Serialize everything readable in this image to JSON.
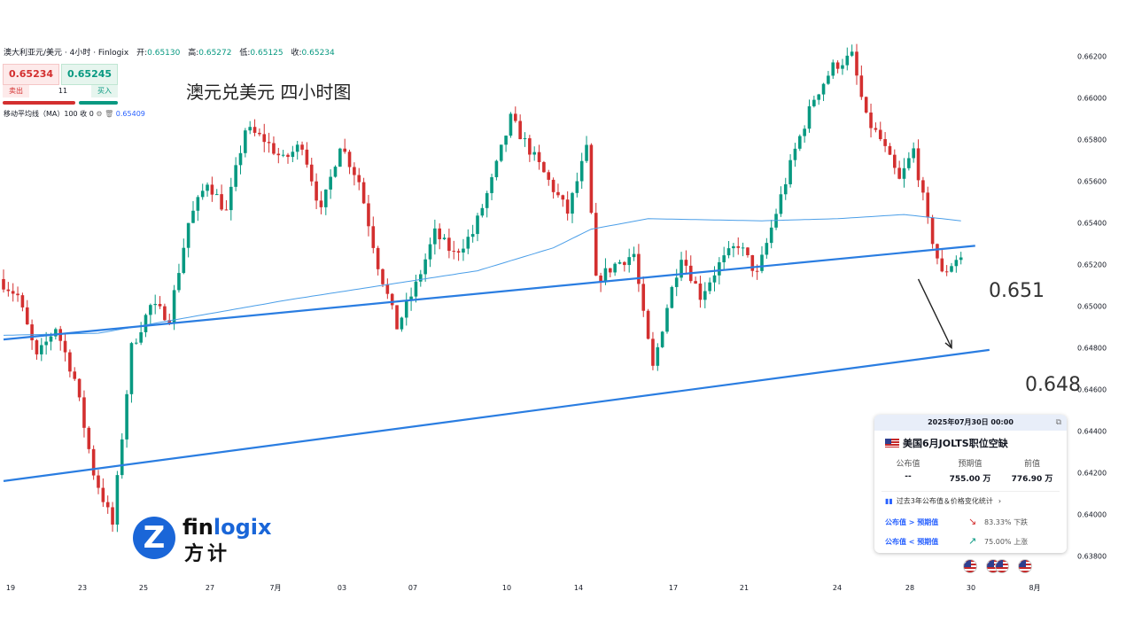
{
  "header": {
    "symbol": "澳大利亚元/美元 · 4小时 · Finlogix",
    "open_label": "开:",
    "open": "0.65130",
    "high_label": "高:",
    "high": "0.65272",
    "low_label": "低:",
    "low": "0.65125",
    "close_label": "收:",
    "close": "0.65234"
  },
  "trade": {
    "sell_price": "0.65234",
    "buy_price": "0.65245",
    "sell_label": "卖出",
    "buy_label": "买入",
    "quantity": "11"
  },
  "indicator": {
    "label": "移动平均线（MA）100 收 0",
    "value": "0.65409"
  },
  "title": "澳元兑美元 四小时图",
  "annotations": {
    "upper": "0.651",
    "lower": "0.648"
  },
  "event": {
    "datetime": "2025年07月30日 00:00",
    "name": "美国6月JOLTS职位空缺",
    "actual_label": "公布值",
    "actual": "--",
    "forecast_label": "预期值",
    "forecast": "755.00 万",
    "previous_label": "前值",
    "previous": "776.90 万",
    "stats_label": "过去3年公布值＆价格变化统计",
    "above_label": "公布值 > 预期值",
    "above_pct": "83.33%",
    "above_text": "下跌",
    "below_label": "公布值 < 预期值",
    "below_pct": "75.00%",
    "below_text": "上涨"
  },
  "logo": {
    "brand_en_a": "fin",
    "brand_en_b": "logix",
    "brand_cn": "方计",
    "mark": "Z"
  },
  "colors": {
    "up": "#089981",
    "down": "#d32f2f",
    "trendline": "#2a7de1",
    "ma": "#4a9ee8"
  },
  "chart_data": {
    "type": "candlestick",
    "timeframe": "4H",
    "y_ticks": [
      "0.66200",
      "0.66000",
      "0.65800",
      "0.65600",
      "0.65400",
      "0.65200",
      "0.65000",
      "0.64800",
      "0.64600",
      "0.64400",
      "0.64200",
      "0.64000",
      "0.63800"
    ],
    "x_ticks": [
      "19",
      "23",
      "25",
      "27",
      "7月",
      "03",
      "07",
      "10",
      "14",
      "17",
      "21",
      "24",
      "28",
      "30",
      "8月"
    ],
    "ylim": [
      0.6372,
      0.663
    ],
    "keypoints": [
      [
        0,
        0.6513
      ],
      [
        4,
        0.6505
      ],
      [
        8,
        0.6475
      ],
      [
        12,
        0.649
      ],
      [
        16,
        0.6465
      ],
      [
        20,
        0.642
      ],
      [
        24,
        0.6395
      ],
      [
        28,
        0.648
      ],
      [
        32,
        0.65
      ],
      [
        36,
        0.6495
      ],
      [
        40,
        0.654
      ],
      [
        44,
        0.656
      ],
      [
        48,
        0.6545
      ],
      [
        52,
        0.6585
      ],
      [
        56,
        0.658
      ],
      [
        60,
        0.657
      ],
      [
        64,
        0.6578
      ],
      [
        68,
        0.6545
      ],
      [
        72,
        0.6578
      ],
      [
        76,
        0.656
      ],
      [
        80,
        0.652
      ],
      [
        84,
        0.649
      ],
      [
        88,
        0.651
      ],
      [
        92,
        0.6535
      ],
      [
        96,
        0.6525
      ],
      [
        100,
        0.6535
      ],
      [
        104,
        0.656
      ],
      [
        108,
        0.659
      ],
      [
        112,
        0.6575
      ],
      [
        116,
        0.656
      ],
      [
        120,
        0.6545
      ],
      [
        124,
        0.6575
      ],
      [
        126,
        0.6512
      ],
      [
        130,
        0.652
      ],
      [
        134,
        0.6525
      ],
      [
        136,
        0.6495
      ],
      [
        138,
        0.647
      ],
      [
        141,
        0.65
      ],
      [
        144,
        0.6525
      ],
      [
        148,
        0.6505
      ],
      [
        152,
        0.652
      ],
      [
        156,
        0.653
      ],
      [
        160,
        0.6515
      ],
      [
        164,
        0.6545
      ],
      [
        168,
        0.6575
      ],
      [
        172,
        0.66
      ],
      [
        176,
        0.6615
      ],
      [
        180,
        0.662
      ],
      [
        183,
        0.659
      ],
      [
        186,
        0.658
      ],
      [
        190,
        0.656
      ],
      [
        193,
        0.6575
      ],
      [
        196,
        0.654
      ],
      [
        199,
        0.6515
      ],
      [
        202,
        0.6523
      ]
    ],
    "ma100_keypoints": [
      [
        0,
        0.6486
      ],
      [
        20,
        0.6487
      ],
      [
        40,
        0.6495
      ],
      [
        60,
        0.6503
      ],
      [
        80,
        0.651
      ],
      [
        100,
        0.6517
      ],
      [
        116,
        0.6528
      ],
      [
        124,
        0.6537
      ],
      [
        136,
        0.6542
      ],
      [
        160,
        0.6541
      ],
      [
        176,
        0.6542
      ],
      [
        190,
        0.6544
      ],
      [
        202,
        0.6541
      ]
    ],
    "trendlines": [
      {
        "from": [
          0.0,
          0.6484
        ],
        "to": [
          205,
          0.6529
        ]
      },
      {
        "from": [
          0.0,
          0.6416
        ],
        "to": [
          208,
          0.6479
        ]
      }
    ],
    "projection_arrow": {
      "from": [
        193,
        0.6513
      ],
      "to": [
        200,
        0.648
      ]
    }
  }
}
